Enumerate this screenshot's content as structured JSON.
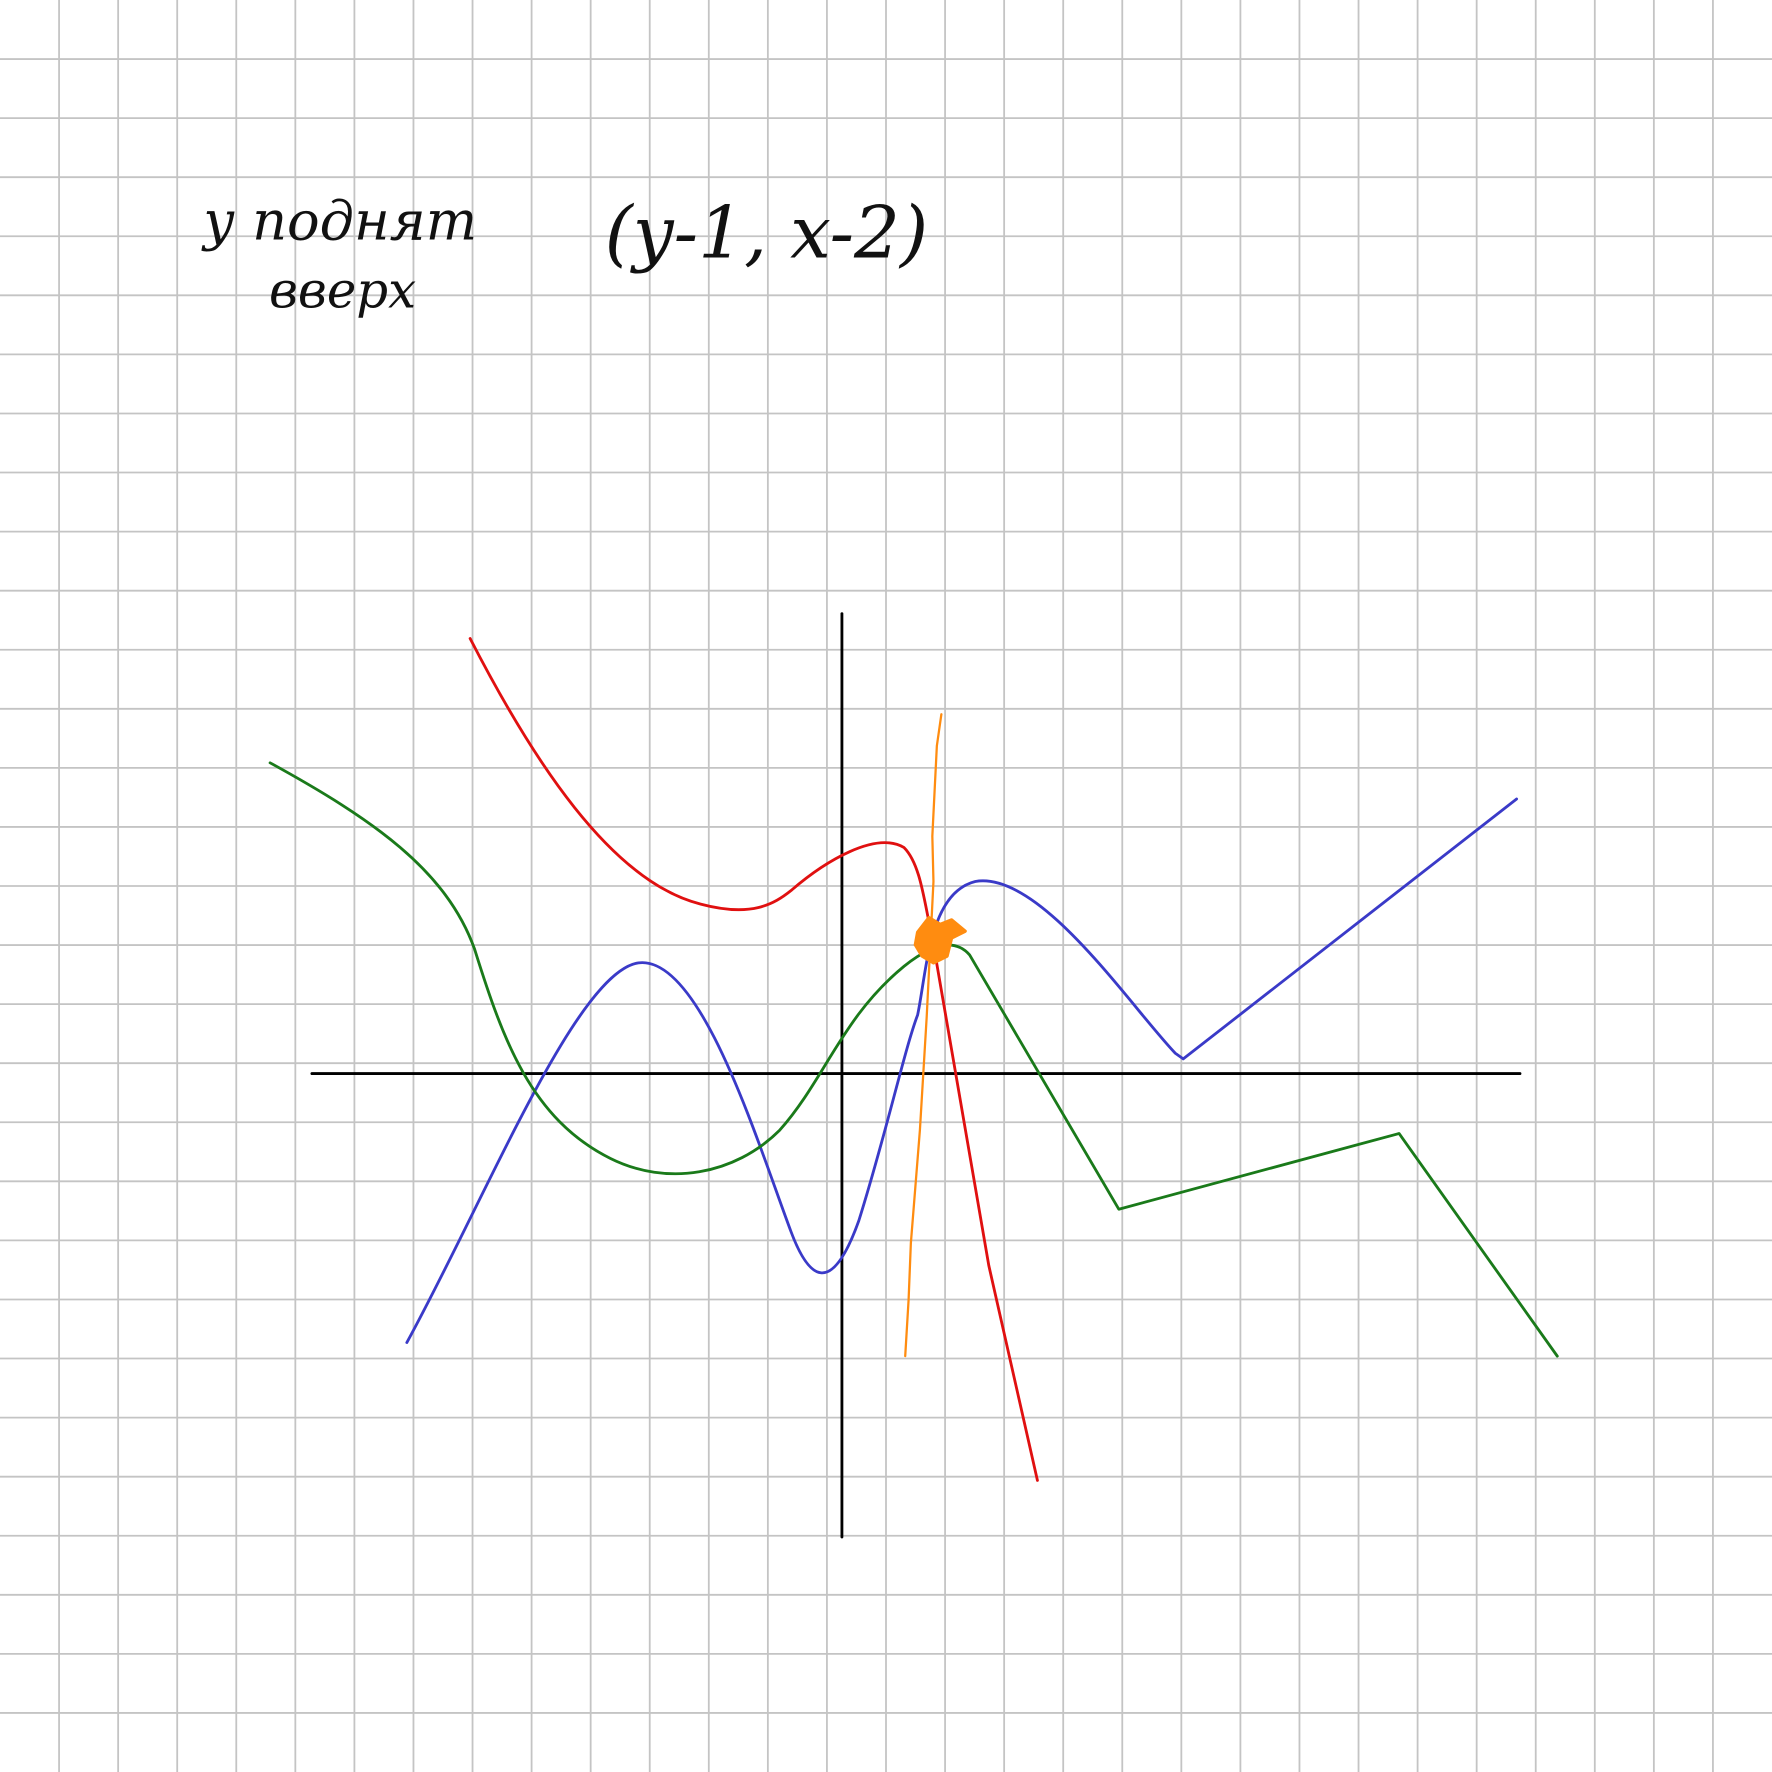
{
  "note": {
    "line1": "у поднят",
    "line2": "вверх",
    "shift": "(y-1, x-2)"
  }
}
